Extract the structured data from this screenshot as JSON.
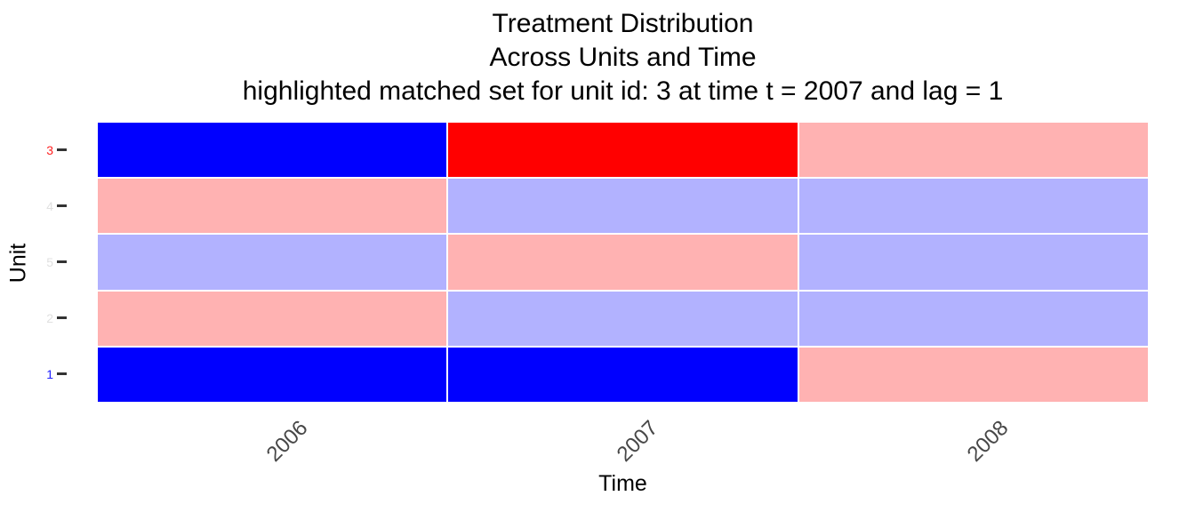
{
  "title": {
    "line1": "Treatment Distribution",
    "line2": "Across Units and Time",
    "line3": "highlighted matched set for unit id: 3 at time t = 2007 and lag = 1"
  },
  "axes": {
    "x_label": "Time",
    "y_label": "Unit",
    "x_ticks": [
      "2006",
      "2007",
      "2008"
    ],
    "x_tick_color": "#474747",
    "tick_mark_color": "#333333",
    "y_ticks": [
      {
        "label": "3",
        "color": "#ff2020"
      },
      {
        "label": "4",
        "color": "#e0e0e0"
      },
      {
        "label": "5",
        "color": "#e0e0e0"
      },
      {
        "label": "2",
        "color": "#e0e0e0"
      },
      {
        "label": "1",
        "color": "#2020ff"
      }
    ]
  },
  "colors": {
    "treated_highlight": "#ff0000",
    "control_highlight": "#0000ff",
    "treated": "#ffb2b2",
    "control": "#b2b2ff",
    "background": "#ffffff"
  },
  "chart_data": {
    "type": "heatmap",
    "title": "Treatment Distribution Across Units and Time",
    "subtitle": "highlighted matched set for unit id: 3 at time t = 2007 and lag = 1",
    "xlabel": "Time",
    "ylabel": "Unit",
    "x": [
      "2006",
      "2007",
      "2008"
    ],
    "units_top_to_bottom": [
      "3",
      "4",
      "5",
      "2",
      "1"
    ],
    "legend": "none",
    "highlight": {
      "unit_id": "3",
      "time": "2007",
      "lag": "1"
    },
    "rows": [
      {
        "unit": "3",
        "states": [
          "control_highlight",
          "treated_highlight",
          "treated"
        ],
        "treatment_values": [
          0,
          1,
          1
        ]
      },
      {
        "unit": "4",
        "states": [
          "treated",
          "control",
          "control"
        ],
        "treatment_values": [
          1,
          0,
          0
        ]
      },
      {
        "unit": "5",
        "states": [
          "control",
          "treated",
          "control"
        ],
        "treatment_values": [
          0,
          1,
          0
        ]
      },
      {
        "unit": "2",
        "states": [
          "treated",
          "control",
          "control"
        ],
        "treatment_values": [
          1,
          0,
          0
        ]
      },
      {
        "unit": "1",
        "states": [
          "control_highlight",
          "control_highlight",
          "treated"
        ],
        "treatment_values": [
          0,
          0,
          1
        ]
      }
    ]
  }
}
